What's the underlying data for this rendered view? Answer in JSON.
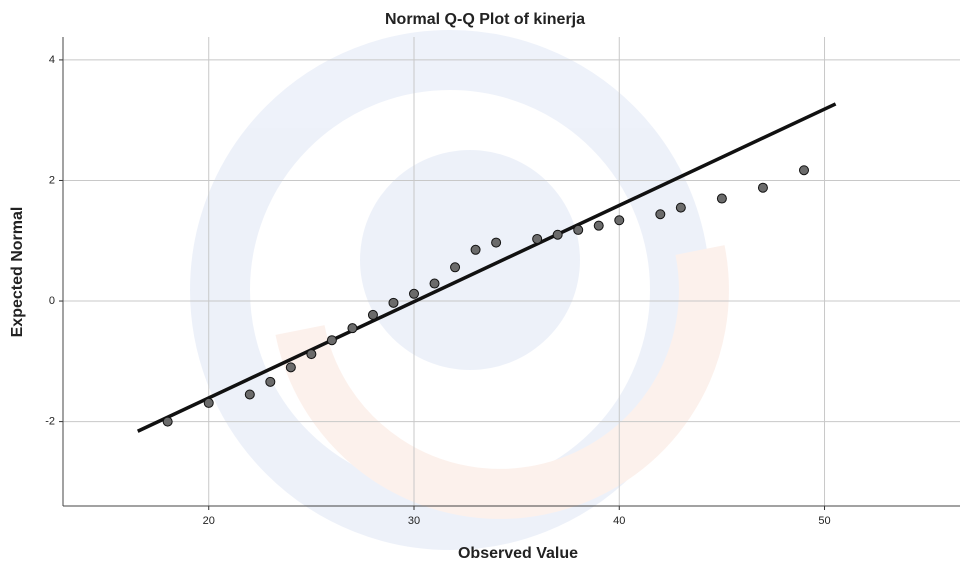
{
  "chart_data": {
    "type": "scatter",
    "title": "Normal Q-Q Plot of kinerja",
    "x_label": "Observed Value",
    "y_label": "Expected Normal",
    "series": [
      {
        "color": "#6b6b6b",
        "x": [
          18,
          20,
          22,
          23,
          24,
          25,
          26,
          27,
          28,
          29,
          30,
          31,
          32,
          33,
          34,
          36,
          37,
          38,
          39,
          40,
          42,
          43,
          45,
          47,
          49
        ],
        "values": [
          -2.0,
          -1.69,
          -1.55,
          -1.34,
          -1.1,
          -0.88,
          -0.65,
          -0.45,
          -0.23,
          -0.03,
          0.12,
          0.29,
          0.56,
          0.85,
          0.97,
          1.03,
          1.1,
          1.18,
          1.25,
          1.34,
          1.44,
          1.55,
          1.7,
          1.88,
          2.17
        ]
      }
    ],
    "reference_line": {
      "color": "#111111",
      "x": [
        16.54,
        50.54
      ],
      "y": [
        -2.16,
        3.27
      ]
    },
    "xlim": [
      12.9,
      56.6
    ],
    "ylim": [
      -3.4,
      4.38
    ],
    "xticks": [
      20,
      30,
      40,
      50
    ],
    "yticks": [
      -2,
      0,
      2,
      4
    ],
    "grid": true
  }
}
